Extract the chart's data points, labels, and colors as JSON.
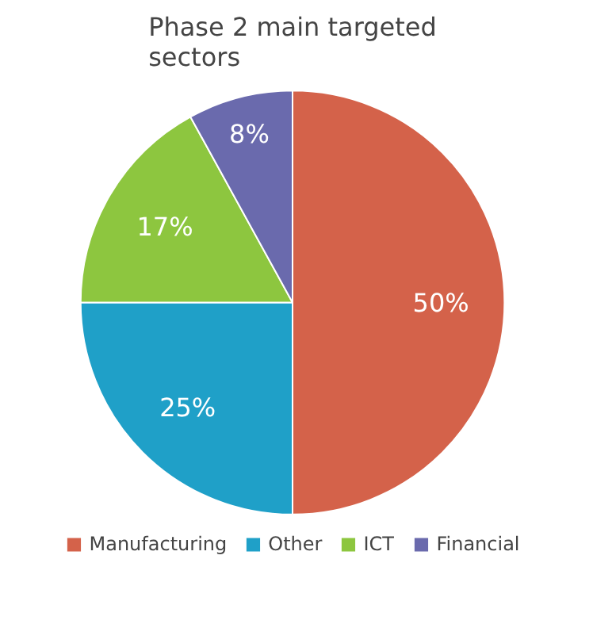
{
  "chart_data": {
    "type": "pie",
    "title": "Phase 2 main targeted sectors",
    "categories": [
      "Manufacturing",
      "Other",
      "ICT",
      "Financial"
    ],
    "values": [
      50,
      25,
      17,
      8
    ],
    "colors": [
      "#d4624a",
      "#1fa0c8",
      "#8dc63f",
      "#6a6aad"
    ],
    "value_labels": [
      "50%",
      "25%",
      "17%",
      "8%"
    ],
    "legend": "bottom"
  }
}
